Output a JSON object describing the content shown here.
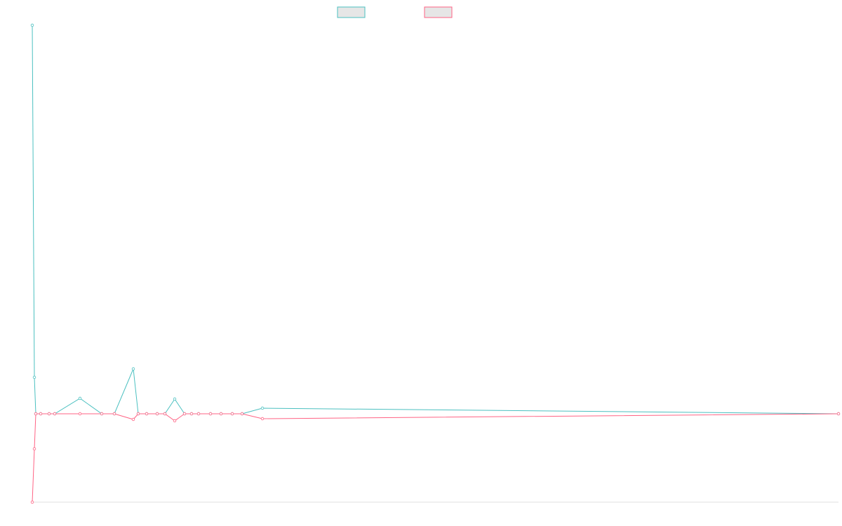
{
  "chart_data": {
    "type": "line",
    "x": [
      0,
      3,
      5,
      12,
      24,
      32,
      68,
      99,
      117,
      144,
      151,
      163,
      178,
      189,
      203,
      217,
      227,
      237,
      254,
      269,
      285,
      299,
      328,
      1149
    ],
    "series": [
      {
        "color": "#4bc0c0",
        "values": [
          554,
          52,
          0,
          0,
          0,
          0,
          22,
          0,
          0,
          64,
          0,
          0,
          0,
          0,
          21,
          0,
          0,
          0,
          0,
          0,
          0,
          0,
          8,
          0
        ]
      },
      {
        "color": "#ff6384",
        "values": [
          -126,
          -50,
          0,
          0,
          0,
          0,
          0,
          0,
          0,
          -8,
          0,
          0,
          0,
          0,
          -10,
          0,
          0,
          0,
          0,
          0,
          0,
          0,
          -7,
          0
        ]
      }
    ],
    "xlim": [
      0,
      1149
    ],
    "ylim": [
      -126,
      554
    ]
  }
}
